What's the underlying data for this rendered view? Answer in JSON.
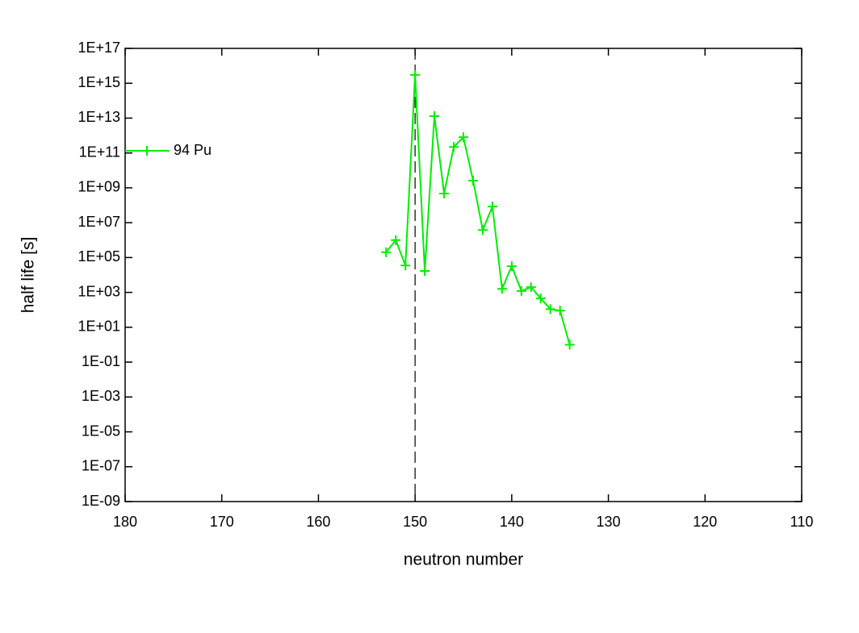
{
  "chart_data": {
    "type": "line",
    "x_label": "neutron number",
    "y_label": "half life [s]",
    "x": [
      153,
      152,
      151,
      150,
      149,
      148,
      147,
      146,
      145,
      144,
      143,
      142,
      141,
      140,
      139,
      138,
      137,
      136,
      135,
      134
    ],
    "series": [
      {
        "name": "94 Pu",
        "color": "#00ee00",
        "values": [
          200000,
          1000000,
          35000,
          3000000000000000,
          17000,
          13000000000000,
          470000000,
          220000000000,
          800000000000,
          2600000000,
          3800000,
          85000000,
          1600,
          32000,
          1200,
          2000,
          450,
          110,
          90,
          1
        ]
      }
    ],
    "xlim": [
      180,
      110
    ],
    "xticks": [
      180,
      170,
      160,
      150,
      140,
      130,
      120,
      110
    ],
    "ylim": [
      1e-09,
      1e+17
    ],
    "log_y": true,
    "yticks": [
      {
        "value": 1e-09,
        "label": "1E-09"
      },
      {
        "value": 1e-07,
        "label": "1E-07"
      },
      {
        "value": 1e-05,
        "label": "1E-05"
      },
      {
        "value": 0.001,
        "label": "1E-03"
      },
      {
        "value": 0.1,
        "label": "1E-01"
      },
      {
        "value": 10,
        "label": "1E+01"
      },
      {
        "value": 1000,
        "label": "1E+03"
      },
      {
        "value": 100000,
        "label": "1E+05"
      },
      {
        "value": 10000000,
        "label": "1E+07"
      },
      {
        "value": 1000000000,
        "label": "1E+09"
      },
      {
        "value": 100000000000,
        "label": "1E+11"
      },
      {
        "value": 10000000000000,
        "label": "1E+13"
      },
      {
        "value": 1000000000000000,
        "label": "1E+15"
      },
      {
        "value": 100000000000000000,
        "label": "1E+17"
      }
    ],
    "vline": 150,
    "legend": "left",
    "grid": false
  }
}
